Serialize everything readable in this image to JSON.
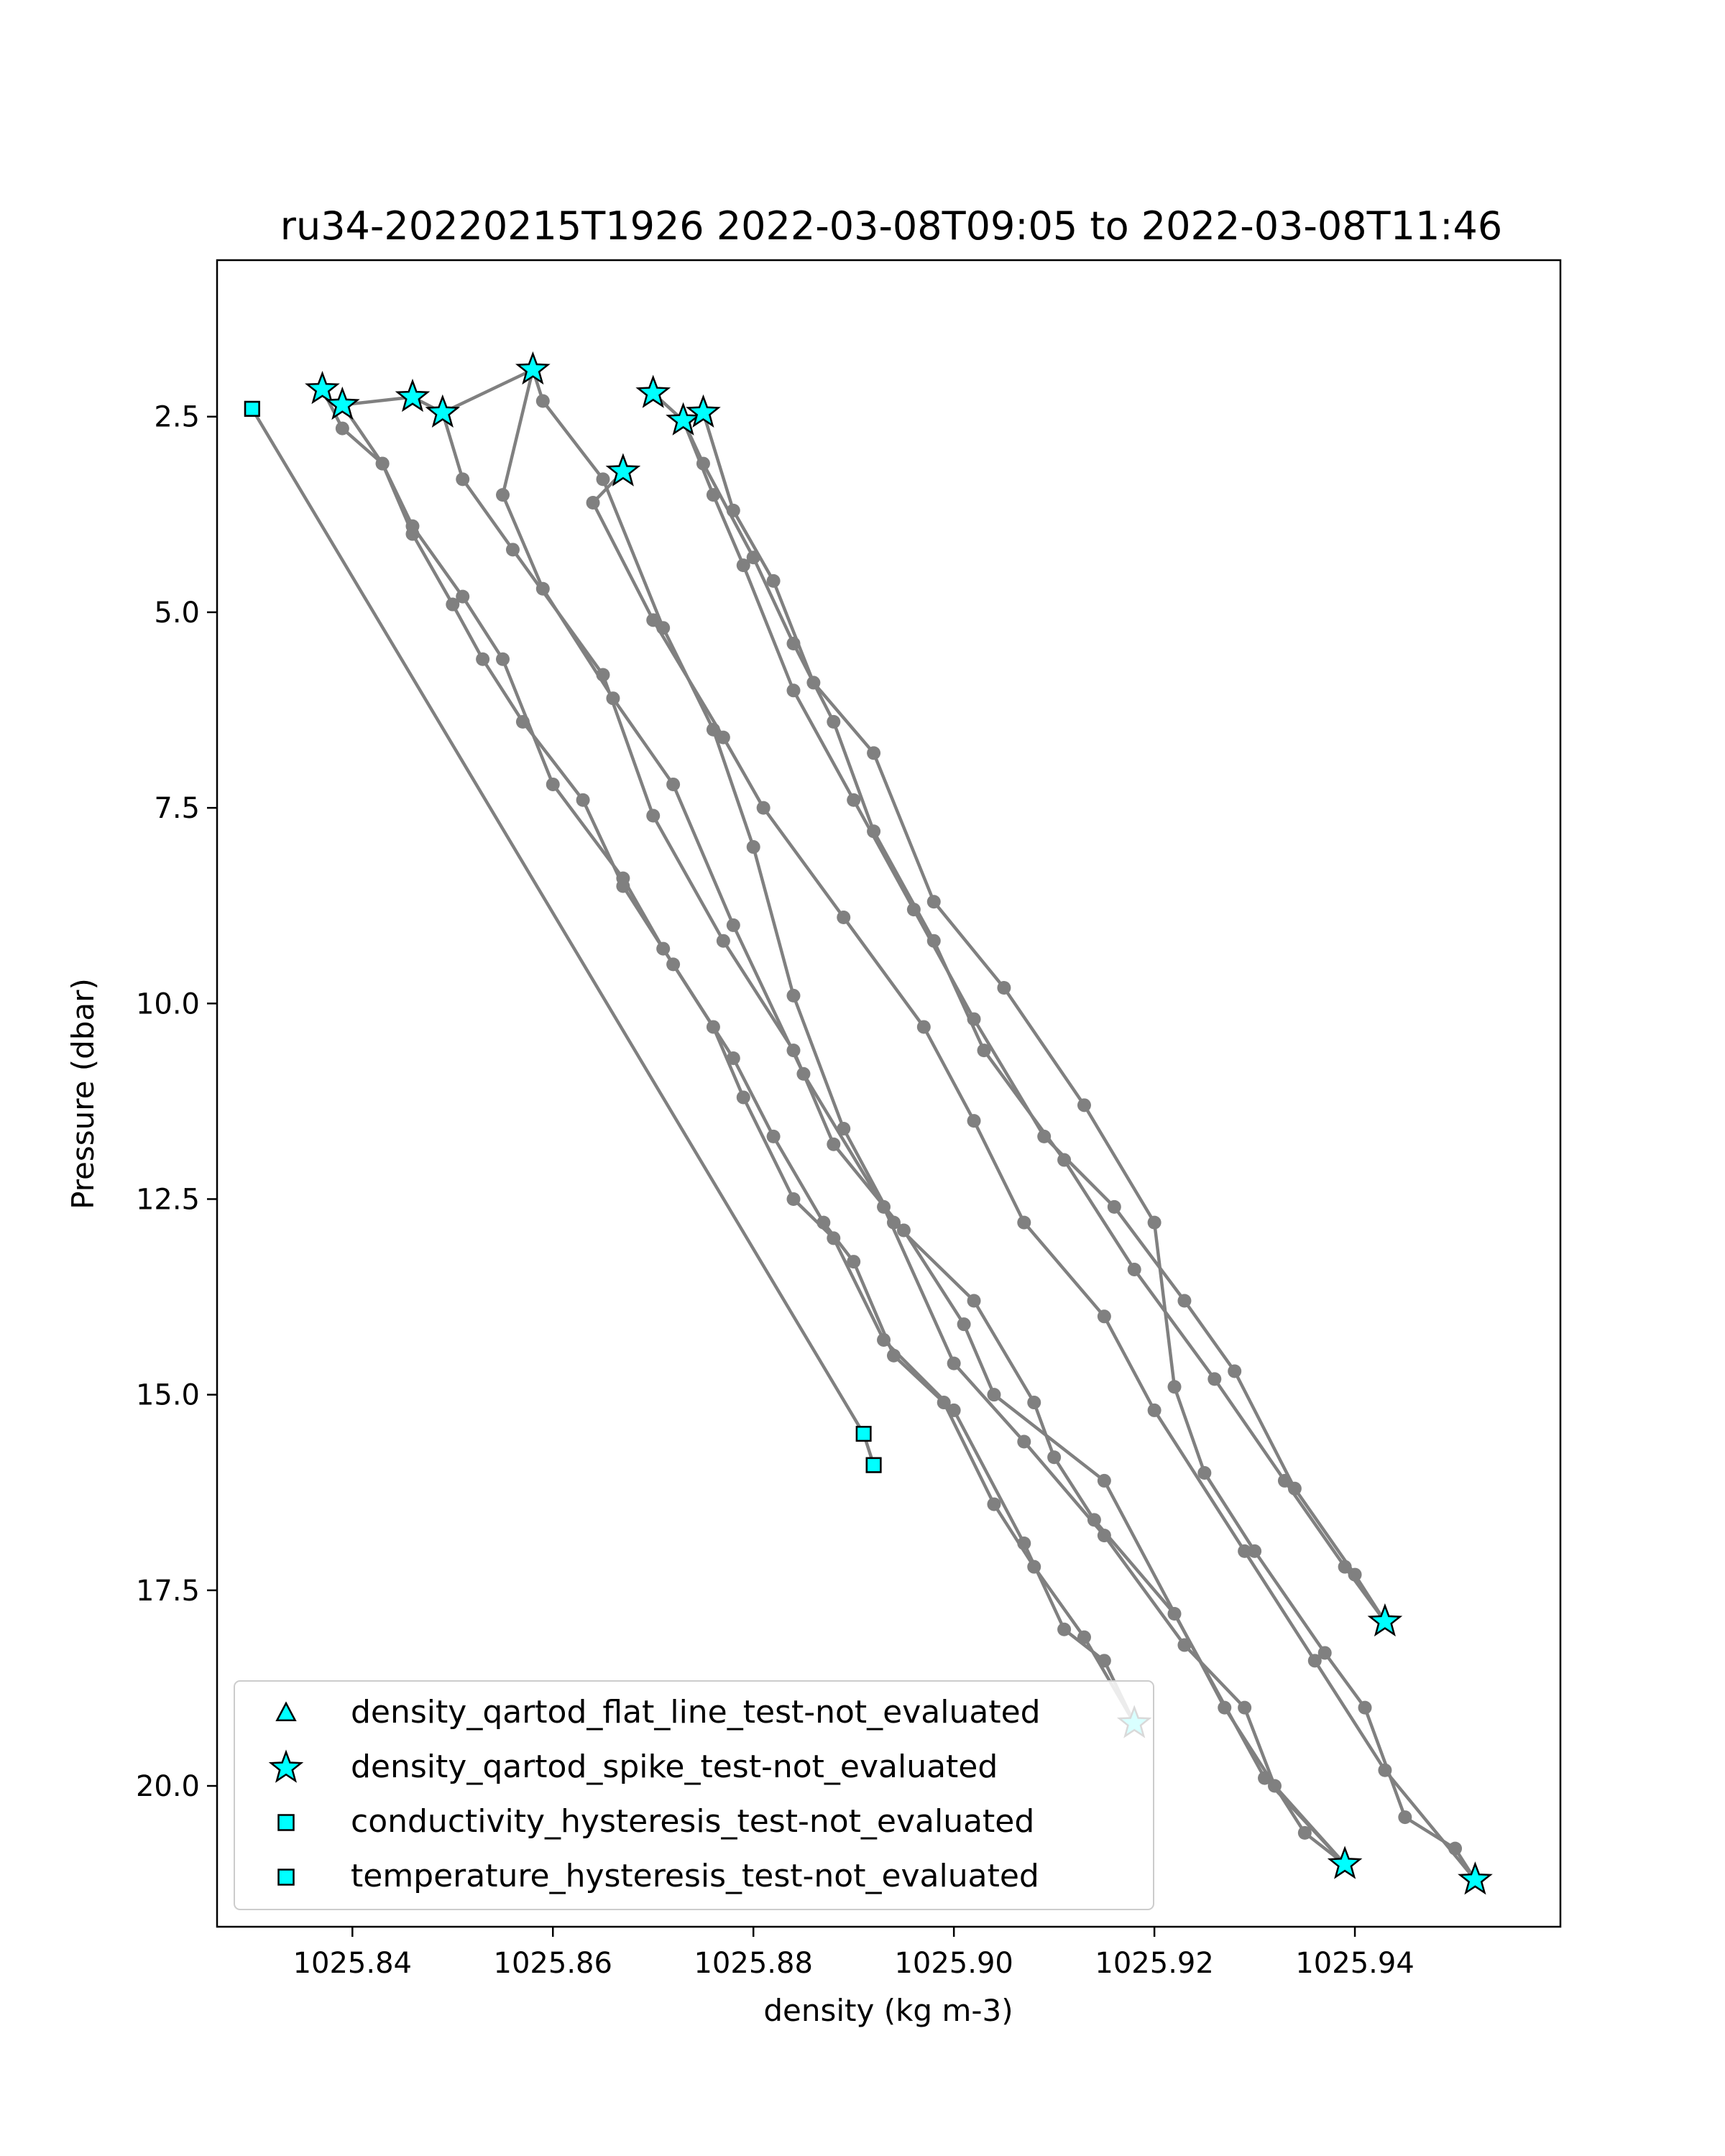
{
  "chart_data": {
    "type": "scatter",
    "title": "ru34-20220215T1926 2022-03-08T09:05 to 2022-03-08T11:46",
    "xlabel": "density (kg m-3)",
    "ylabel": "Pressure (dbar)",
    "xlim": [
      1025.8265,
      1025.9605
    ],
    "ylim": [
      21.8,
      0.5
    ],
    "y_inverted": true,
    "xticks": [
      1025.84,
      1025.86,
      1025.88,
      1025.9,
      1025.92,
      1025.94
    ],
    "xtick_labels": [
      "1025.84",
      "1025.86",
      "1025.88",
      "1025.90",
      "1025.92",
      "1025.94"
    ],
    "yticks": [
      2.5,
      5.0,
      7.5,
      10.0,
      12.5,
      15.0,
      17.5,
      20.0
    ],
    "ytick_labels": [
      "2.5",
      "5.0",
      "7.5",
      "10.0",
      "12.5",
      "15.0",
      "17.5",
      "20.0"
    ],
    "grid": false,
    "legend_position": "lower-left",
    "colors": {
      "profile_line": "#808080",
      "marker_fill": "#00ffff",
      "marker_edge": "#000000"
    },
    "profiles": [
      [
        [
          1025.83,
          2.4
        ],
        [
          1025.891,
          15.5
        ],
        [
          1025.892,
          15.9
        ]
      ],
      [
        [
          1025.839,
          2.35
        ],
        [
          1025.843,
          3.1
        ],
        [
          1025.846,
          4.0
        ],
        [
          1025.85,
          4.9
        ],
        [
          1025.853,
          5.6
        ],
        [
          1025.857,
          6.4
        ],
        [
          1025.863,
          7.4
        ],
        [
          1025.867,
          8.5
        ],
        [
          1025.872,
          9.5
        ],
        [
          1025.878,
          10.7
        ],
        [
          1025.882,
          11.7
        ],
        [
          1025.887,
          12.8
        ],
        [
          1025.89,
          13.3
        ],
        [
          1025.894,
          14.5
        ],
        [
          1025.899,
          15.1
        ],
        [
          1025.904,
          16.4
        ],
        [
          1025.908,
          17.2
        ],
        [
          1025.913,
          18.1
        ],
        [
          1025.918,
          19.2
        ]
      ],
      [
        [
          1025.837,
          2.15
        ],
        [
          1025.839,
          2.65
        ],
        [
          1025.843,
          3.1
        ],
        [
          1025.846,
          3.9
        ],
        [
          1025.851,
          4.8
        ],
        [
          1025.855,
          5.6
        ],
        [
          1025.86,
          7.2
        ],
        [
          1025.867,
          8.4
        ],
        [
          1025.871,
          9.3
        ],
        [
          1025.876,
          10.3
        ],
        [
          1025.879,
          11.2
        ],
        [
          1025.884,
          12.5
        ],
        [
          1025.888,
          13.0
        ],
        [
          1025.893,
          14.3
        ],
        [
          1025.9,
          15.2
        ],
        [
          1025.907,
          16.9
        ],
        [
          1025.911,
          18.0
        ],
        [
          1025.915,
          18.4
        ],
        [
          1025.918,
          19.2
        ]
      ],
      [
        [
          1025.839,
          2.35
        ],
        [
          1025.846,
          2.25
        ],
        [
          1025.849,
          2.45
        ],
        [
          1025.858,
          1.9
        ],
        [
          1025.859,
          2.3
        ],
        [
          1025.865,
          3.3
        ],
        [
          1025.871,
          5.2
        ],
        [
          1025.876,
          6.5
        ],
        [
          1025.88,
          8.0
        ],
        [
          1025.884,
          9.9
        ],
        [
          1025.889,
          11.6
        ],
        [
          1025.894,
          12.8
        ],
        [
          1025.902,
          13.8
        ],
        [
          1025.908,
          15.1
        ],
        [
          1025.91,
          15.8
        ],
        [
          1025.914,
          16.6
        ],
        [
          1025.922,
          17.8
        ],
        [
          1025.931,
          19.9
        ],
        [
          1025.939,
          21.0
        ]
      ],
      [
        [
          1025.849,
          2.45
        ],
        [
          1025.851,
          3.3
        ],
        [
          1025.856,
          4.2
        ],
        [
          1025.865,
          5.8
        ],
        [
          1025.87,
          7.6
        ],
        [
          1025.877,
          9.2
        ],
        [
          1025.884,
          10.6
        ],
        [
          1025.888,
          11.8
        ],
        [
          1025.895,
          12.9
        ],
        [
          1025.901,
          14.1
        ],
        [
          1025.904,
          15.0
        ],
        [
          1025.915,
          16.1
        ],
        [
          1025.927,
          19.0
        ],
        [
          1025.935,
          20.6
        ],
        [
          1025.939,
          21.0
        ]
      ],
      [
        [
          1025.858,
          1.9
        ],
        [
          1025.855,
          3.5
        ],
        [
          1025.859,
          4.7
        ],
        [
          1025.866,
          6.1
        ],
        [
          1025.872,
          7.2
        ],
        [
          1025.878,
          9.0
        ],
        [
          1025.885,
          10.9
        ],
        [
          1025.893,
          12.6
        ],
        [
          1025.9,
          14.6
        ],
        [
          1025.907,
          15.6
        ],
        [
          1025.915,
          16.8
        ],
        [
          1025.923,
          18.2
        ],
        [
          1025.929,
          19.0
        ],
        [
          1025.932,
          20.0
        ],
        [
          1025.939,
          21.0
        ]
      ],
      [
        [
          1025.87,
          2.2
        ],
        [
          1025.873,
          2.55
        ],
        [
          1025.875,
          3.1
        ],
        [
          1025.88,
          4.3
        ],
        [
          1025.884,
          5.4
        ],
        [
          1025.888,
          6.4
        ],
        [
          1025.892,
          7.8
        ],
        [
          1025.898,
          9.2
        ],
        [
          1025.903,
          10.6
        ],
        [
          1025.911,
          12.0
        ],
        [
          1025.918,
          13.4
        ],
        [
          1025.926,
          14.8
        ],
        [
          1025.933,
          16.1
        ],
        [
          1025.939,
          17.2
        ],
        [
          1025.943,
          17.9
        ]
      ],
      [
        [
          1025.873,
          2.55
        ],
        [
          1025.876,
          3.5
        ],
        [
          1025.879,
          4.4
        ],
        [
          1025.884,
          6.0
        ],
        [
          1025.89,
          7.4
        ],
        [
          1025.896,
          8.8
        ],
        [
          1025.902,
          10.2
        ],
        [
          1025.909,
          11.7
        ],
        [
          1025.916,
          12.6
        ],
        [
          1025.923,
          13.8
        ],
        [
          1025.928,
          14.7
        ],
        [
          1025.934,
          16.2
        ],
        [
          1025.94,
          17.3
        ],
        [
          1025.943,
          17.9
        ]
      ],
      [
        [
          1025.867,
          3.2
        ],
        [
          1025.864,
          3.6
        ],
        [
          1025.87,
          5.1
        ],
        [
          1025.877,
          6.6
        ],
        [
          1025.881,
          7.5
        ],
        [
          1025.889,
          8.9
        ],
        [
          1025.897,
          10.3
        ],
        [
          1025.902,
          11.5
        ],
        [
          1025.907,
          12.8
        ],
        [
          1025.915,
          14.0
        ],
        [
          1025.92,
          15.2
        ],
        [
          1025.929,
          17.0
        ],
        [
          1025.936,
          18.4
        ],
        [
          1025.943,
          19.8
        ],
        [
          1025.952,
          21.2
        ]
      ],
      [
        [
          1025.875,
          2.45
        ],
        [
          1025.878,
          3.7
        ],
        [
          1025.882,
          4.6
        ],
        [
          1025.886,
          5.9
        ],
        [
          1025.892,
          6.8
        ],
        [
          1025.898,
          8.7
        ],
        [
          1025.905,
          9.8
        ],
        [
          1025.913,
          11.3
        ],
        [
          1025.92,
          12.8
        ],
        [
          1025.922,
          14.9
        ],
        [
          1025.925,
          16.0
        ],
        [
          1025.93,
          17.0
        ],
        [
          1025.937,
          18.3
        ],
        [
          1025.941,
          19.0
        ],
        [
          1025.945,
          20.4
        ],
        [
          1025.95,
          20.8
        ],
        [
          1025.952,
          21.2
        ]
      ]
    ],
    "series": [
      {
        "name": "density_qartod_flat_line_test-not_evaluated",
        "marker": "triangle",
        "points": []
      },
      {
        "name": "density_qartod_spike_test-not_evaluated",
        "marker": "star",
        "points": [
          [
            1025.837,
            2.15
          ],
          [
            1025.839,
            2.35
          ],
          [
            1025.846,
            2.25
          ],
          [
            1025.849,
            2.45
          ],
          [
            1025.858,
            1.9
          ],
          [
            1025.87,
            2.2
          ],
          [
            1025.873,
            2.55
          ],
          [
            1025.875,
            2.45
          ],
          [
            1025.867,
            3.2
          ],
          [
            1025.918,
            19.2
          ],
          [
            1025.939,
            21.0
          ],
          [
            1025.952,
            21.2
          ],
          [
            1025.943,
            17.9
          ]
        ]
      },
      {
        "name": "conductivity_hysteresis_test-not_evaluated",
        "marker": "square",
        "points": [
          [
            1025.83,
            2.4
          ],
          [
            1025.891,
            15.5
          ],
          [
            1025.892,
            15.9
          ]
        ]
      },
      {
        "name": "temperature_hysteresis_test-not_evaluated",
        "marker": "square",
        "points": [
          [
            1025.83,
            2.4
          ],
          [
            1025.892,
            15.9
          ]
        ]
      }
    ]
  }
}
